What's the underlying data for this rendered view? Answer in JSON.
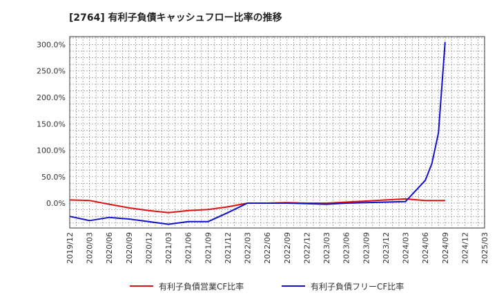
{
  "chart_data": {
    "type": "line",
    "title": "[2764]  有利子負債キャッシュフロー比率の推移",
    "xlabel": "",
    "ylabel": "",
    "ylim": [
      -47,
      315
    ],
    "yticks": [
      0,
      50,
      100,
      150,
      200,
      250,
      300
    ],
    "ytick_labels": [
      "0.0%",
      "50.0%",
      "100.0%",
      "150.0%",
      "200.0%",
      "250.0%",
      "300.0%"
    ],
    "x_start": "2019-12",
    "x_end": "2025-03",
    "xtick_labels": [
      "2019/12",
      "2020/03",
      "2020/06",
      "2020/09",
      "2020/12",
      "2021/03",
      "2021/06",
      "2021/09",
      "2021/12",
      "2022/03",
      "2022/06",
      "2022/09",
      "2022/12",
      "2023/03",
      "2023/06",
      "2023/09",
      "2023/12",
      "2024/03",
      "2024/06",
      "2024/09",
      "2024/12",
      "2025/03"
    ],
    "grid": true,
    "legend_position": "bottom",
    "series": [
      {
        "name": "有利子負債営業CF比率",
        "color": "#dd1111",
        "points": [
          {
            "x": "2019-12",
            "y": 6
          },
          {
            "x": "2020-03",
            "y": 5
          },
          {
            "x": "2020-06",
            "y": -2
          },
          {
            "x": "2020-09",
            "y": -9
          },
          {
            "x": "2020-12",
            "y": -14
          },
          {
            "x": "2021-03",
            "y": -18
          },
          {
            "x": "2021-06",
            "y": -14
          },
          {
            "x": "2021-09",
            "y": -12
          },
          {
            "x": "2021-12",
            "y": -7
          },
          {
            "x": "2022-03",
            "y": 0
          },
          {
            "x": "2022-06",
            "y": 0
          },
          {
            "x": "2022-09",
            "y": 1
          },
          {
            "x": "2022-12",
            "y": 0
          },
          {
            "x": "2023-03",
            "y": 0
          },
          {
            "x": "2023-06",
            "y": 2
          },
          {
            "x": "2023-09",
            "y": 4
          },
          {
            "x": "2023-12",
            "y": 6
          },
          {
            "x": "2024-03",
            "y": 8
          },
          {
            "x": "2024-06",
            "y": 5
          },
          {
            "x": "2024-09",
            "y": 5
          }
        ]
      },
      {
        "name": "有利子負債フリーCF比率",
        "color": "#1111cc",
        "points": [
          {
            "x": "2019-12",
            "y": -25
          },
          {
            "x": "2020-03",
            "y": -33
          },
          {
            "x": "2020-06",
            "y": -27
          },
          {
            "x": "2020-09",
            "y": -30
          },
          {
            "x": "2020-12",
            "y": -35
          },
          {
            "x": "2021-03",
            "y": -40
          },
          {
            "x": "2021-06",
            "y": -35
          },
          {
            "x": "2021-09",
            "y": -35
          },
          {
            "x": "2021-12",
            "y": -18
          },
          {
            "x": "2022-03",
            "y": 0
          },
          {
            "x": "2022-06",
            "y": 0
          },
          {
            "x": "2022-09",
            "y": 0
          },
          {
            "x": "2022-12",
            "y": -1
          },
          {
            "x": "2023-03",
            "y": -2
          },
          {
            "x": "2023-06",
            "y": 0
          },
          {
            "x": "2023-09",
            "y": 1
          },
          {
            "x": "2023-12",
            "y": 2
          },
          {
            "x": "2024-03",
            "y": 3
          },
          {
            "x": "2024-06",
            "y": 43
          },
          {
            "x": "2024-07",
            "y": 75
          },
          {
            "x": "2024-08",
            "y": 133
          },
          {
            "x": "2024-09",
            "y": 305
          }
        ]
      }
    ]
  }
}
